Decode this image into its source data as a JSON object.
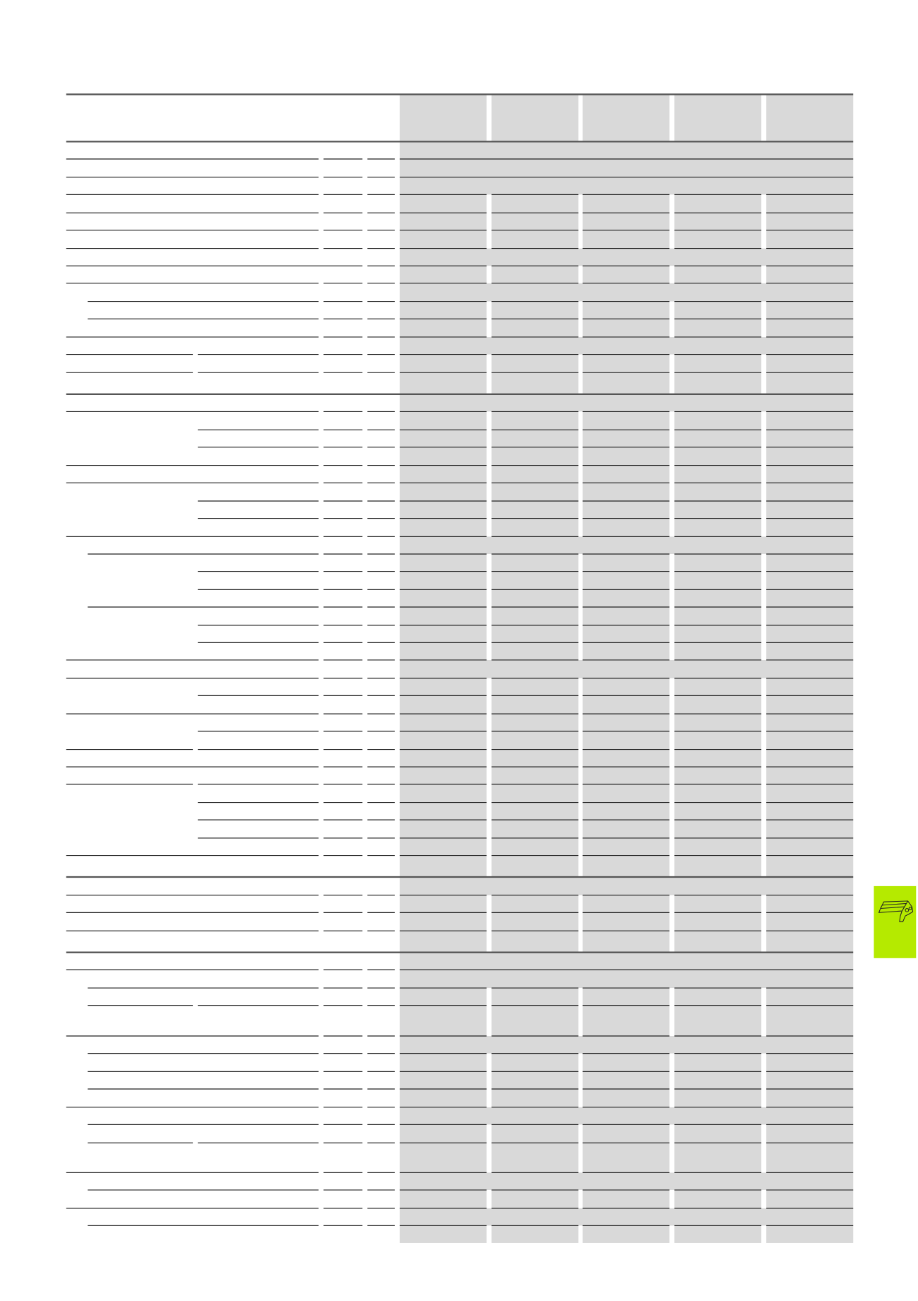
{
  "table": {
    "shade_color": "#d9d9d9",
    "rule_color": "#222222",
    "thick_rule_color": "#555555"
  },
  "side_tab": {
    "color": "#b5ea00",
    "icon": "ski-binding-icon"
  }
}
